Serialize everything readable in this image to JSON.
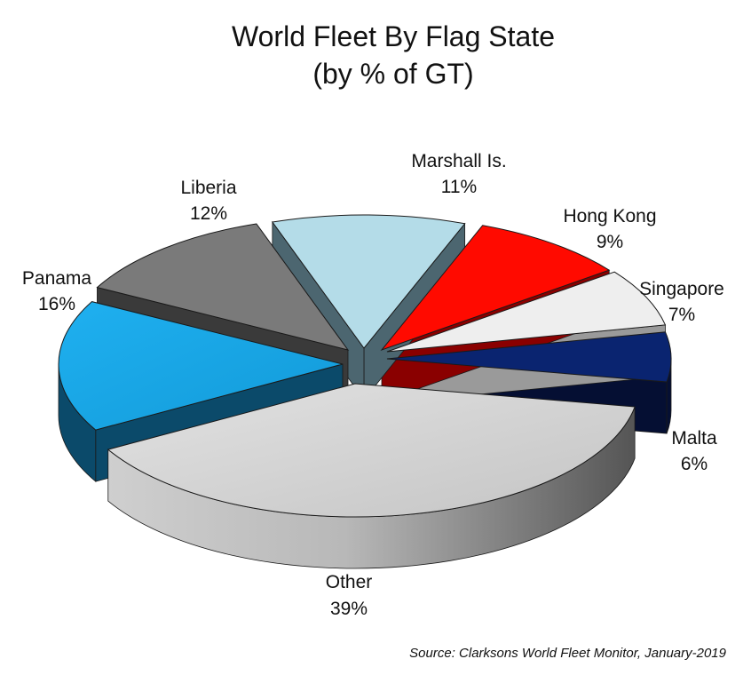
{
  "chart_data": {
    "type": "pie",
    "title": "World Fleet By Flag State",
    "subtitle": "(by % of GT)",
    "unit": "%",
    "slices": [
      {
        "label": "Other",
        "value": 39,
        "value_label": "39%",
        "color": "#c8c8c8",
        "side_color": "#8a8a8a"
      },
      {
        "label": "Panama",
        "value": 16,
        "value_label": "16%",
        "color": "#1aa6e8",
        "side_color": "#0b4a6a"
      },
      {
        "label": "Liberia",
        "value": 12,
        "value_label": "12%",
        "color": "#7a7a7a",
        "side_color": "#3a3a3a"
      },
      {
        "label": "Marshall Is.",
        "value": 11,
        "value_label": "11%",
        "color": "#b4dce8",
        "side_color": "#4c6670"
      },
      {
        "label": "Hong Kong",
        "value": 9,
        "value_label": "9%",
        "color": "#ff0a00",
        "side_color": "#8a0000"
      },
      {
        "label": "Singapore",
        "value": 7,
        "value_label": "7%",
        "color": "#eeeeee",
        "side_color": "#9a9a9a"
      },
      {
        "label": "Malta",
        "value": 6,
        "value_label": "6%",
        "color": "#0a2470",
        "side_color": "#050f33"
      }
    ],
    "source": "Source: Clarksons World Fleet Monitor, January-2019",
    "exploded": true,
    "three_d": true,
    "legend": "none"
  }
}
